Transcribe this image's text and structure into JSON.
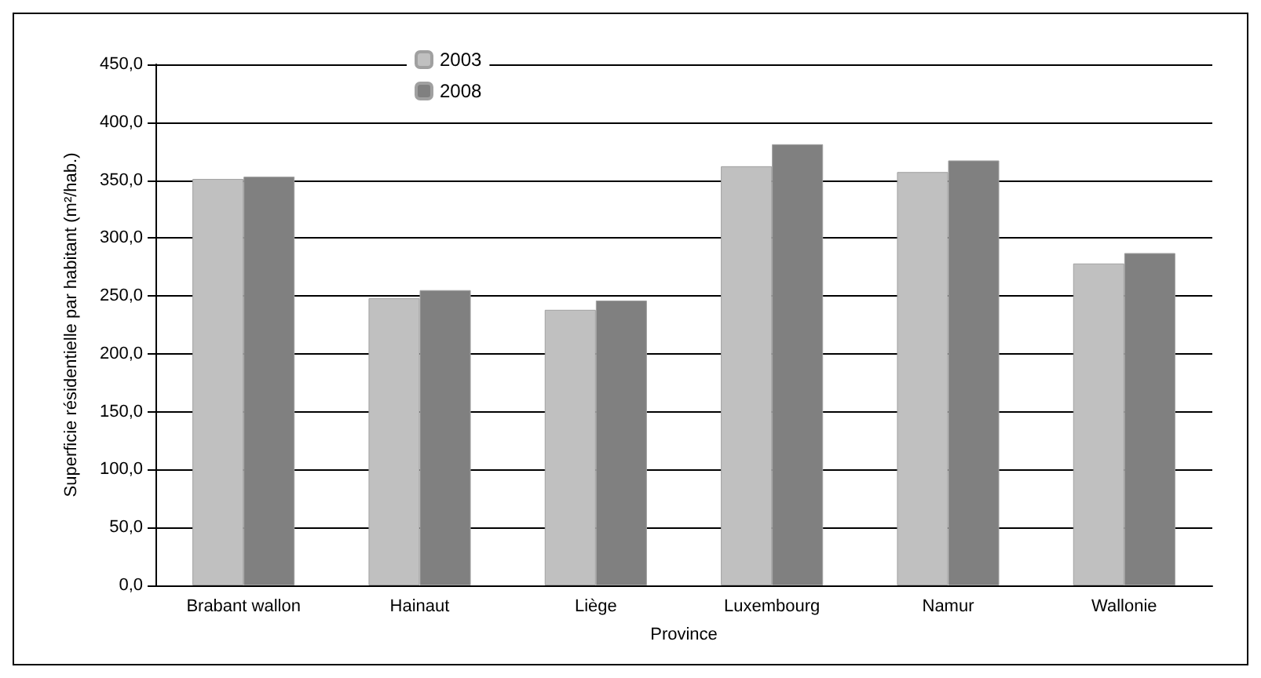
{
  "chart_data": {
    "type": "bar",
    "xlabel": "Province",
    "ylabel": "Superficie résidentielle par habitant (m²/hab.)",
    "categories": [
      "Brabant wallon",
      "Hainaut",
      "Liège",
      "Luxembourg",
      "Namur",
      "Wallonie"
    ],
    "series": [
      {
        "name": "2003",
        "color": "#c0c0c0",
        "values": [
          351,
          248,
          238,
          362,
          357,
          278
        ]
      },
      {
        "name": "2008",
        "color": "#808080",
        "values": [
          353,
          255,
          246,
          381,
          367,
          287
        ]
      }
    ],
    "ylim": [
      0,
      450
    ],
    "yticks": [
      {
        "value": 0,
        "label": "0,0"
      },
      {
        "value": 50,
        "label": "50,0"
      },
      {
        "value": 100,
        "label": "100,0"
      },
      {
        "value": 150,
        "label": "150,0"
      },
      {
        "value": 200,
        "label": "200,0"
      },
      {
        "value": 250,
        "label": "250,0"
      },
      {
        "value": 300,
        "label": "300,0"
      },
      {
        "value": 350,
        "label": "350,0"
      },
      {
        "value": 400,
        "label": "400,0"
      },
      {
        "value": 450,
        "label": "450,0"
      }
    ],
    "grid": "y",
    "legend": "top"
  }
}
